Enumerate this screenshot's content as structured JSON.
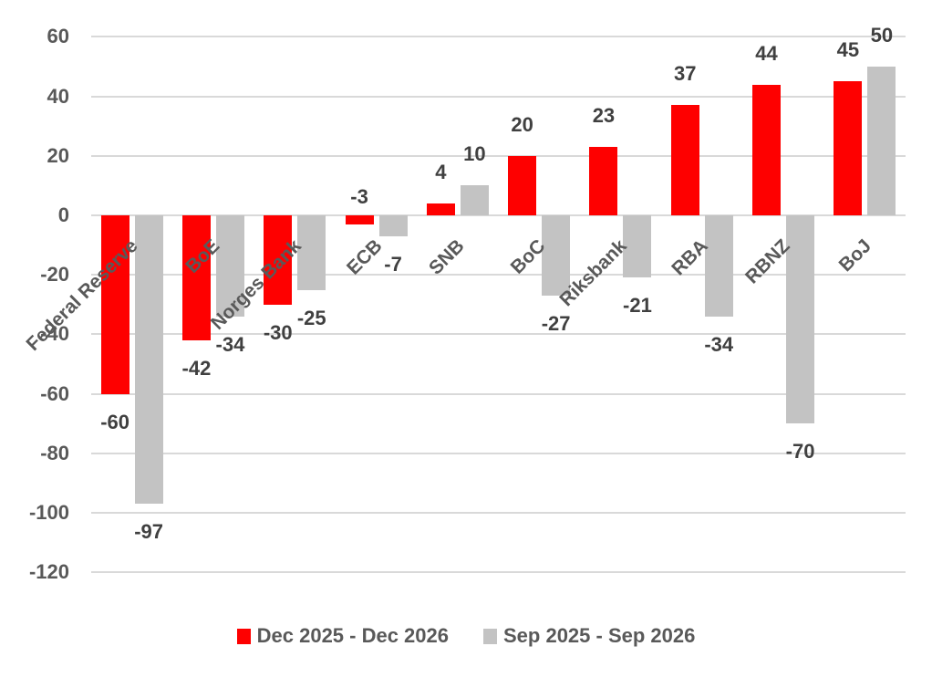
{
  "chart_data": {
    "type": "bar",
    "title": "",
    "xlabel": "",
    "ylabel": "",
    "categories": [
      "Federal Reserve",
      "BoE",
      "Norges Bank",
      "ECB",
      "SNB",
      "BoC",
      "Riksbank",
      "RBA",
      "RBNZ",
      "BoJ"
    ],
    "series": [
      {
        "name": "Dec 2025 - Dec 2026",
        "color": "#FE0000",
        "values": [
          -60,
          -42,
          -30,
          -3,
          4,
          20,
          23,
          37,
          44,
          45
        ]
      },
      {
        "name": "Sep 2025 - Sep 2026",
        "color": "#C3C3C3",
        "values": [
          -97,
          -34,
          -25,
          -7,
          10,
          -27,
          -21,
          -34,
          -70,
          50
        ]
      }
    ],
    "y_ticks": [
      60,
      40,
      20,
      0,
      -20,
      -40,
      -60,
      -80,
      -100,
      -120
    ],
    "ylim": [
      -120,
      60
    ],
    "grid": true,
    "legend_position": "bottom",
    "data_labels": true
  },
  "colors": {
    "background": "#FFFFFF",
    "grid": "#D9D9D9",
    "axis_text": "#595959",
    "data_label": "#404040",
    "legend_text": "#595959",
    "series_red": "#FE0000",
    "series_gray": "#C3C3C3"
  }
}
